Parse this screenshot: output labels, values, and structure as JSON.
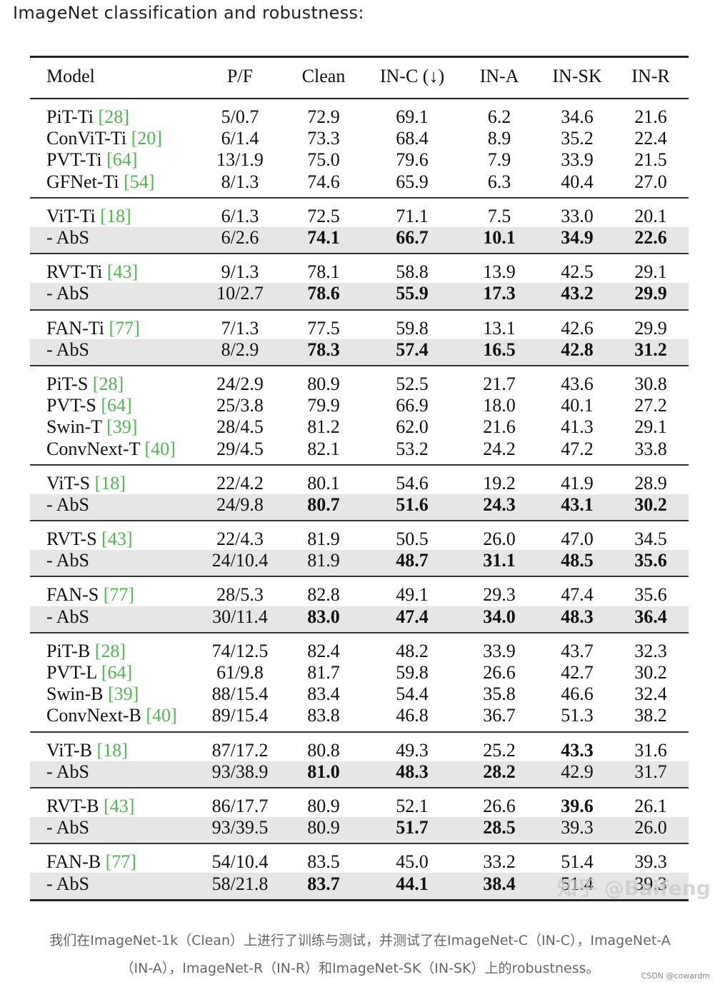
{
  "heading": "ImageNet classification and robustness:",
  "table": {
    "headers": [
      "Model",
      "P/F",
      "Clean",
      "IN-C (↓)",
      "IN-A",
      "IN-SK",
      "IN-R"
    ],
    "groups": [
      [
        {
          "name": "PiT-Ti",
          "ref": "[28]",
          "values": [
            "5/0.7",
            "72.9",
            "69.1",
            "6.2",
            "34.6",
            "21.6"
          ]
        },
        {
          "name": "ConViT-Ti",
          "ref": "[20]",
          "values": [
            "6/1.4",
            "73.3",
            "68.4",
            "8.9",
            "35.2",
            "22.4"
          ]
        },
        {
          "name": "PVT-Ti",
          "ref": "[64]",
          "values": [
            "13/1.9",
            "75.0",
            "79.6",
            "7.9",
            "33.9",
            "21.5"
          ]
        },
        {
          "name": "GFNet-Ti",
          "ref": "[54]",
          "values": [
            "8/1.3",
            "74.6",
            "65.9",
            "6.3",
            "40.4",
            "27.0"
          ]
        }
      ],
      [
        {
          "name": "ViT-Ti",
          "ref": "[18]",
          "values": [
            "6/1.3",
            "72.5",
            "71.1",
            "7.5",
            "33.0",
            "20.1"
          ]
        },
        {
          "name": "- AbS",
          "ref": "",
          "abs": true,
          "values": [
            "6/2.6",
            "74.1",
            "66.7",
            "10.1",
            "34.9",
            "22.6"
          ],
          "bold": [
            1,
            2,
            3,
            4,
            5
          ]
        }
      ],
      [
        {
          "name": "RVT-Ti",
          "ref": "[43]",
          "values": [
            "9/1.3",
            "78.1",
            "58.8",
            "13.9",
            "42.5",
            "29.1"
          ]
        },
        {
          "name": "- AbS",
          "ref": "",
          "abs": true,
          "values": [
            "10/2.7",
            "78.6",
            "55.9",
            "17.3",
            "43.2",
            "29.9"
          ],
          "bold": [
            1,
            2,
            3,
            4,
            5
          ]
        }
      ],
      [
        {
          "name": "FAN-Ti",
          "ref": "[77]",
          "values": [
            "7/1.3",
            "77.5",
            "59.8",
            "13.1",
            "42.6",
            "29.9"
          ]
        },
        {
          "name": "- AbS",
          "ref": "",
          "abs": true,
          "values": [
            "8/2.9",
            "78.3",
            "57.4",
            "16.5",
            "42.8",
            "31.2"
          ],
          "bold": [
            1,
            2,
            3,
            4,
            5
          ]
        }
      ],
      [
        {
          "name": "PiT-S",
          "ref": "[28]",
          "values": [
            "24/2.9",
            "80.9",
            "52.5",
            "21.7",
            "43.6",
            "30.8"
          ]
        },
        {
          "name": "PVT-S",
          "ref": "[64]",
          "values": [
            "25/3.8",
            "79.9",
            "66.9",
            "18.0",
            "40.1",
            "27.2"
          ]
        },
        {
          "name": "Swin-T",
          "ref": "[39]",
          "values": [
            "28/4.5",
            "81.2",
            "62.0",
            "21.6",
            "41.3",
            "29.1"
          ]
        },
        {
          "name": "ConvNext-T",
          "ref": "[40]",
          "values": [
            "29/4.5",
            "82.1",
            "53.2",
            "24.2",
            "47.2",
            "33.8"
          ]
        }
      ],
      [
        {
          "name": "ViT-S",
          "ref": "[18]",
          "values": [
            "22/4.2",
            "80.1",
            "54.6",
            "19.2",
            "41.9",
            "28.9"
          ]
        },
        {
          "name": "- AbS",
          "ref": "",
          "abs": true,
          "values": [
            "24/9.8",
            "80.7",
            "51.6",
            "24.3",
            "43.1",
            "30.2"
          ],
          "bold": [
            1,
            2,
            3,
            4,
            5
          ]
        }
      ],
      [
        {
          "name": "RVT-S",
          "ref": "[43]",
          "values": [
            "22/4.3",
            "81.9",
            "50.5",
            "26.0",
            "47.0",
            "34.5"
          ]
        },
        {
          "name": "- AbS",
          "ref": "",
          "abs": true,
          "values": [
            "24/10.4",
            "81.9",
            "48.7",
            "31.1",
            "48.5",
            "35.6"
          ],
          "bold": [
            2,
            3,
            4,
            5
          ]
        }
      ],
      [
        {
          "name": "FAN-S",
          "ref": "[77]",
          "values": [
            "28/5.3",
            "82.8",
            "49.1",
            "29.3",
            "47.4",
            "35.6"
          ]
        },
        {
          "name": "- AbS",
          "ref": "",
          "abs": true,
          "values": [
            "30/11.4",
            "83.0",
            "47.4",
            "34.0",
            "48.3",
            "36.4"
          ],
          "bold": [
            1,
            2,
            3,
            4,
            5
          ]
        }
      ],
      [
        {
          "name": "PiT-B",
          "ref": "[28]",
          "values": [
            "74/12.5",
            "82.4",
            "48.2",
            "33.9",
            "43.7",
            "32.3"
          ]
        },
        {
          "name": "PVT-L",
          "ref": "[64]",
          "values": [
            "61/9.8",
            "81.7",
            "59.8",
            "26.6",
            "42.7",
            "30.2"
          ]
        },
        {
          "name": "Swin-B",
          "ref": "[39]",
          "values": [
            "88/15.4",
            "83.4",
            "54.4",
            "35.8",
            "46.6",
            "32.4"
          ]
        },
        {
          "name": "ConvNext-B",
          "ref": "[40]",
          "values": [
            "89/15.4",
            "83.8",
            "46.8",
            "36.7",
            "51.3",
            "38.2"
          ]
        }
      ],
      [
        {
          "name": "ViT-B",
          "ref": "[18]",
          "values": [
            "87/17.2",
            "80.8",
            "49.3",
            "25.2",
            "43.3",
            "31.6"
          ],
          "bold": [
            4
          ]
        },
        {
          "name": "- AbS",
          "ref": "",
          "abs": true,
          "values": [
            "93/38.9",
            "81.0",
            "48.3",
            "28.2",
            "42.9",
            "31.7"
          ],
          "bold": [
            1,
            2,
            3
          ]
        }
      ],
      [
        {
          "name": "RVT-B",
          "ref": "[43]",
          "values": [
            "86/17.7",
            "80.9",
            "52.1",
            "26.6",
            "39.6",
            "26.1"
          ],
          "bold": [
            4
          ]
        },
        {
          "name": "- AbS",
          "ref": "",
          "abs": true,
          "values": [
            "93/39.5",
            "80.9",
            "51.7",
            "28.5",
            "39.3",
            "26.0"
          ],
          "bold": [
            2,
            3
          ]
        }
      ],
      [
        {
          "name": "FAN-B",
          "ref": "[77]",
          "values": [
            "54/10.4",
            "83.5",
            "45.0",
            "33.2",
            "51.4",
            "39.3"
          ]
        },
        {
          "name": "- AbS",
          "ref": "",
          "abs": true,
          "values": [
            "58/21.8",
            "83.7",
            "44.1",
            "38.4",
            "51.4",
            "39.3"
          ],
          "bold": [
            1,
            2,
            3
          ]
        }
      ]
    ]
  },
  "caption_lines": [
    "我们在ImageNet-1k（Clean）上进行了训练与测试，并测试了在ImageNet-C（IN-C），ImageNet-A",
    "（IN-A），ImageNet-R（IN-R）和ImageNet-SK（IN-SK）上的robustness。"
  ],
  "watermark": "知乎 @Baifeng",
  "credit": "CSDN @cowardm"
}
